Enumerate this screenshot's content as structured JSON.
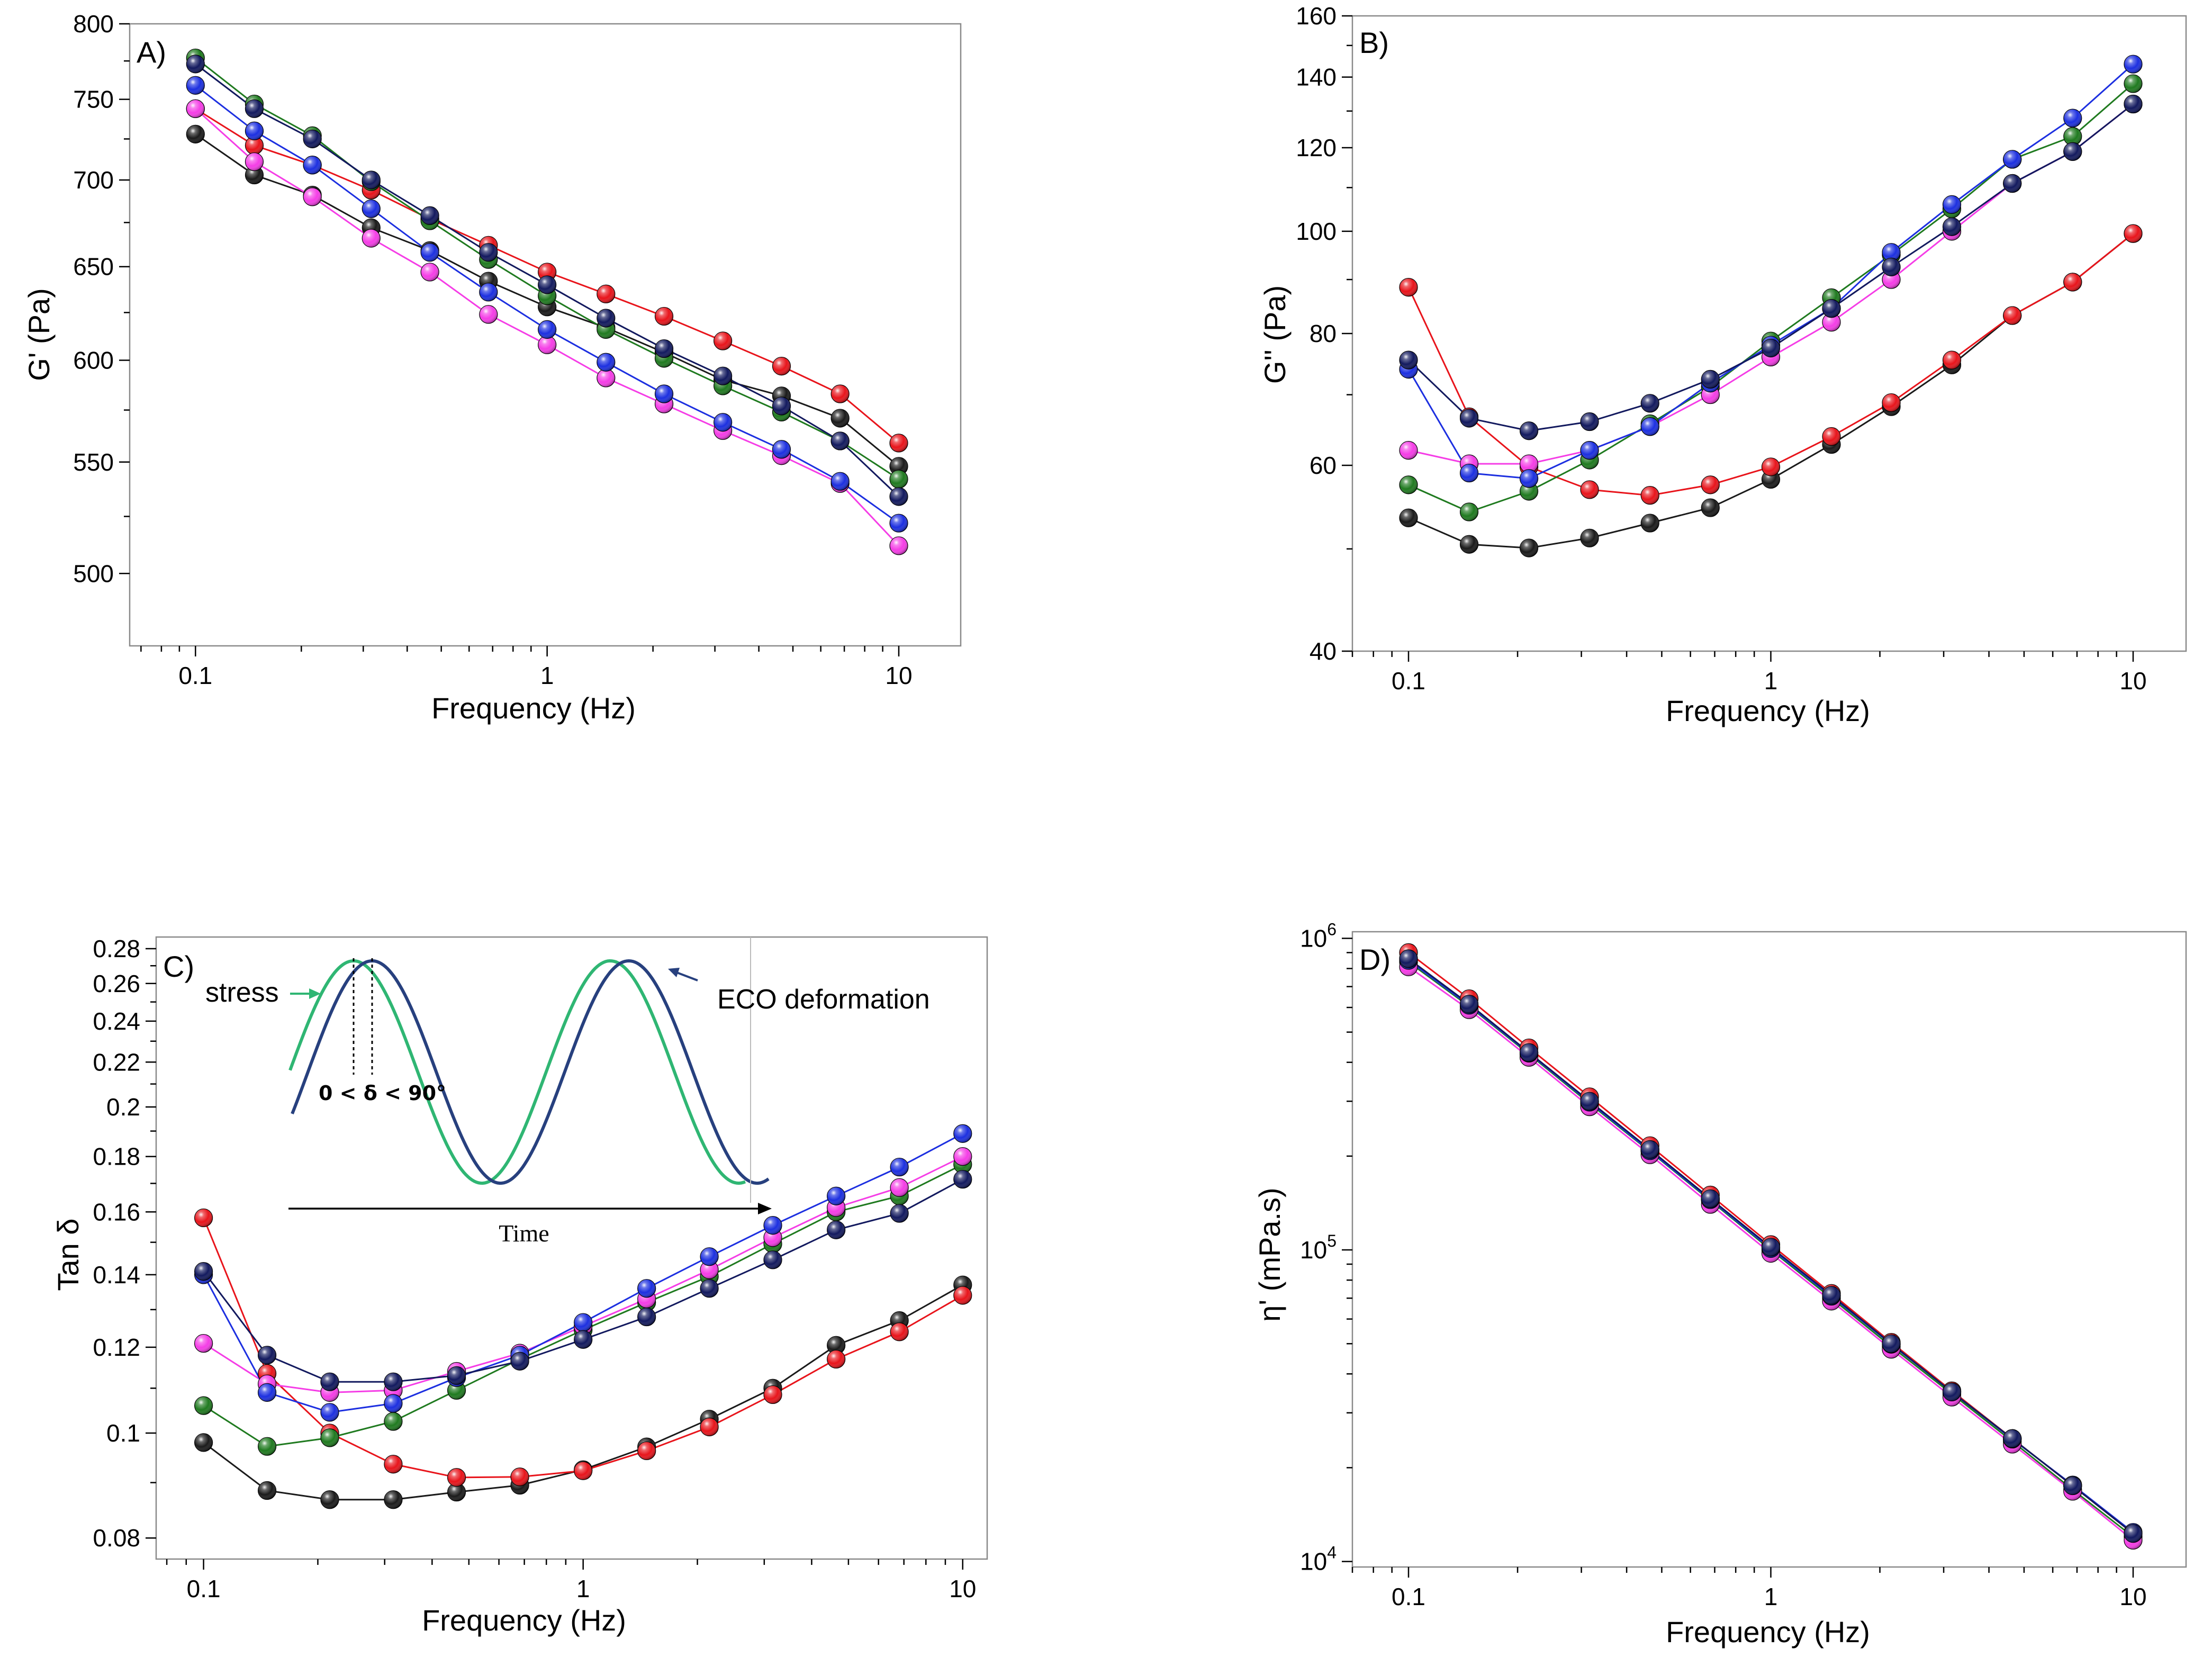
{
  "colors": {
    "black": "#1a1a1a",
    "red": "#e8141b",
    "green": "#1f7a1f",
    "magenta": "#f53de6",
    "blue": "#1c2fe0",
    "navy": "#12195e"
  },
  "chart_data": [
    {
      "id": "A",
      "type": "line",
      "panel_label": "A)",
      "xlabel": "Frequency (Hz)",
      "ylabel": "G' (Pa)",
      "xscale": "log",
      "yscale": "log",
      "xlim": [
        0.065,
        15
      ],
      "ylim": [
        470,
        800
      ],
      "xticks": [
        0.1,
        1,
        10
      ],
      "xtick_labels": [
        "0.1",
        "1",
        "10"
      ],
      "yticks": [
        500,
        550,
        600,
        650,
        700,
        750,
        800
      ],
      "ytick_labels": [
        "500",
        "550",
        "600",
        "650",
        "700",
        "750",
        "800"
      ],
      "x": [
        0.1,
        0.147,
        0.215,
        0.316,
        0.464,
        0.681,
        1,
        1.47,
        2.15,
        3.16,
        4.64,
        6.81,
        10
      ],
      "series": [
        {
          "name": "black",
          "color_key": "black",
          "values": [
            728,
            703,
            691,
            672,
            659,
            642,
            628,
            617,
            604,
            590,
            582,
            571,
            548
          ]
        },
        {
          "name": "red",
          "color_key": "red",
          "values": [
            744,
            721,
            709,
            694,
            677,
            662,
            647,
            635,
            623,
            610,
            597,
            583,
            559
          ]
        },
        {
          "name": "green",
          "color_key": "green",
          "values": [
            777,
            747,
            727,
            699,
            676,
            654,
            634,
            616,
            601,
            587,
            574,
            560,
            542
          ]
        },
        {
          "name": "magenta",
          "color_key": "magenta",
          "values": [
            744,
            711,
            690,
            666,
            647,
            624,
            608,
            591,
            578,
            565,
            553,
            540,
            512
          ]
        },
        {
          "name": "blue",
          "color_key": "blue",
          "values": [
            759,
            730,
            709,
            683,
            658,
            636,
            616,
            599,
            583,
            569,
            556,
            541,
            522
          ]
        },
        {
          "name": "navy",
          "color_key": "navy",
          "values": [
            773,
            744,
            725,
            700,
            679,
            658,
            640,
            622,
            606,
            592,
            577,
            560,
            534
          ]
        }
      ]
    },
    {
      "id": "B",
      "type": "line",
      "panel_label": "B)",
      "xlabel": "Frequency (Hz)",
      "ylabel": "G'' (Pa)",
      "xscale": "log",
      "yscale": "log",
      "xlim": [
        0.07,
        14
      ],
      "ylim": [
        40,
        160
      ],
      "xticks": [
        0.1,
        1,
        10
      ],
      "xtick_labels": [
        "0.1",
        "1",
        "10"
      ],
      "yticks": [
        40,
        60,
        80,
        100,
        120,
        140,
        160
      ],
      "ytick_labels": [
        "40",
        "60",
        "80",
        "100",
        "120",
        "140",
        "160"
      ],
      "x": [
        0.1,
        0.147,
        0.215,
        0.316,
        0.464,
        0.681,
        1,
        1.47,
        2.15,
        3.16,
        4.64,
        6.81,
        10
      ],
      "series": [
        {
          "name": "black",
          "color_key": "black",
          "values": [
            53.5,
            50.5,
            50.1,
            51.2,
            52.9,
            54.7,
            58.2,
            62.8,
            68.2,
            74.7,
            83.2,
            89.5,
            99.5
          ]
        },
        {
          "name": "red",
          "color_key": "red",
          "values": [
            88.5,
            66.7,
            59.8,
            56.9,
            56.2,
            57.5,
            59.8,
            63.9,
            68.8,
            75.5,
            83.2,
            89.5,
            99.5
          ]
        },
        {
          "name": "green",
          "color_key": "green",
          "values": [
            57.5,
            54.2,
            56.7,
            60.7,
            65.7,
            71.2,
            78.7,
            86.5,
            95.0,
            105,
            117,
            123,
            138
          ]
        },
        {
          "name": "magenta",
          "color_key": "magenta",
          "values": [
            62.0,
            60.2,
            60.2,
            62.0,
            65.3,
            70.0,
            76.0,
            82.0,
            90.0,
            100,
            111,
            119,
            132
          ]
        },
        {
          "name": "blue",
          "color_key": "blue",
          "values": [
            74.0,
            59.0,
            58.3,
            62.0,
            65.3,
            71.8,
            78.0,
            84.5,
            95.5,
            106,
            117,
            128,
            144
          ]
        },
        {
          "name": "navy",
          "color_key": "navy",
          "values": [
            75.5,
            66.5,
            64.7,
            66.0,
            68.7,
            72.4,
            77.5,
            84.5,
            92.5,
            101,
            111,
            119,
            132
          ]
        }
      ]
    },
    {
      "id": "C",
      "type": "line",
      "panel_label": "C)",
      "xlabel": "Frequency (Hz)",
      "ylabel": "Tan δ",
      "xscale": "log",
      "yscale": "log",
      "xlim": [
        0.075,
        11.6
      ],
      "ylim": [
        0.0765,
        0.287
      ],
      "xticks": [
        0.1,
        1,
        10
      ],
      "xtick_labels": [
        "0.1",
        "1",
        "10"
      ],
      "yticks": [
        0.08,
        0.1,
        0.12,
        0.14,
        0.16,
        0.18,
        0.2,
        0.22,
        0.24,
        0.26,
        0.28
      ],
      "ytick_labels": [
        "0.08",
        "0.1",
        "0.12",
        "0.14",
        "0.16",
        "0.18",
        "0.2",
        "0.22",
        "0.24",
        "0.26",
        "0.28"
      ],
      "x": [
        0.1,
        0.147,
        0.215,
        0.316,
        0.464,
        0.681,
        1,
        1.47,
        2.15,
        3.16,
        4.64,
        6.81,
        10
      ],
      "series": [
        {
          "name": "black",
          "color_key": "black",
          "values": [
            0.098,
            0.0885,
            0.0868,
            0.0868,
            0.0882,
            0.0895,
            0.0925,
            0.0971,
            0.103,
            0.11,
            0.1205,
            0.127,
            0.137
          ]
        },
        {
          "name": "red",
          "color_key": "red",
          "values": [
            0.158,
            0.1135,
            0.1,
            0.0936,
            0.091,
            0.0911,
            0.0923,
            0.0963,
            0.1013,
            0.1085,
            0.117,
            0.124,
            0.134
          ]
        },
        {
          "name": "green",
          "color_key": "green",
          "values": [
            0.106,
            0.0972,
            0.099,
            0.1025,
            0.1095,
            0.117,
            0.1245,
            0.132,
            0.1395,
            0.1495,
            0.16,
            0.1655,
            0.177
          ]
        },
        {
          "name": "magenta",
          "color_key": "magenta",
          "values": [
            0.121,
            0.111,
            0.109,
            0.1095,
            0.114,
            0.1185,
            0.1255,
            0.133,
            0.1415,
            0.1515,
            0.1615,
            0.1685,
            0.18
          ]
        },
        {
          "name": "blue",
          "color_key": "blue",
          "values": [
            0.14,
            0.109,
            0.1045,
            0.1065,
            0.1125,
            0.118,
            0.1265,
            0.136,
            0.1455,
            0.1555,
            0.1655,
            0.176,
            0.189
          ]
        },
        {
          "name": "navy",
          "color_key": "navy",
          "values": [
            0.141,
            0.118,
            0.1115,
            0.1115,
            0.113,
            0.1165,
            0.122,
            0.128,
            0.136,
            0.1445,
            0.154,
            0.1595,
            0.1715
          ]
        }
      ],
      "inset": {
        "stress_label": "stress",
        "deformation_label": "ECO deformation",
        "time_label": "Time",
        "phase_label": "0 < δ < 90°",
        "stress_color": "#2fb673",
        "deformation_color": "#27407e"
      }
    },
    {
      "id": "D",
      "type": "line",
      "panel_label": "D)",
      "xlabel": "Frequency (Hz)",
      "ylabel": "η' (mPa.s)",
      "xscale": "log",
      "yscale": "log",
      "xlim": [
        0.07,
        14
      ],
      "ylim": [
        9600,
        1050000
      ],
      "xticks": [
        0.1,
        1,
        10
      ],
      "xtick_labels": [
        "0.1",
        "1",
        "10"
      ],
      "yticks": [
        10000,
        100000,
        1000000
      ],
      "ytick_labels": [
        "10",
        "10",
        "10"
      ],
      "ytick_exponents": [
        "4",
        "5",
        "6"
      ],
      "x": [
        0.1,
        0.147,
        0.215,
        0.316,
        0.464,
        0.681,
        1,
        1.47,
        2.15,
        3.16,
        4.64,
        6.81,
        10
      ],
      "series": [
        {
          "name": "black",
          "color_key": "black",
          "values": [
            860000,
            615000,
            430000,
            300000,
            210000,
            146000,
            102000,
            71500,
            50000,
            35000,
            24800,
            17500,
            12300
          ]
        },
        {
          "name": "red",
          "color_key": "red",
          "values": [
            900000,
            640000,
            445000,
            310000,
            216000,
            150000,
            104000,
            72500,
            50500,
            35300,
            24800,
            17500,
            12300
          ]
        },
        {
          "name": "green",
          "color_key": "green",
          "values": [
            840000,
            605000,
            425000,
            295000,
            207000,
            144000,
            100000,
            70000,
            49000,
            34500,
            24300,
            17000,
            12000
          ]
        },
        {
          "name": "magenta",
          "color_key": "magenta",
          "values": [
            810000,
            590000,
            415000,
            288000,
            202000,
            140000,
            97500,
            68500,
            48000,
            33700,
            23800,
            16800,
            11700
          ]
        },
        {
          "name": "blue",
          "color_key": "blue",
          "values": [
            850000,
            610000,
            428000,
            298000,
            208000,
            145000,
            101000,
            71000,
            49800,
            35000,
            24700,
            17600,
            12400
          ]
        },
        {
          "name": "navy",
          "color_key": "navy",
          "values": [
            860000,
            615000,
            430000,
            300000,
            210000,
            146000,
            102000,
            71500,
            50000,
            35000,
            24800,
            17500,
            12300
          ]
        }
      ]
    }
  ]
}
